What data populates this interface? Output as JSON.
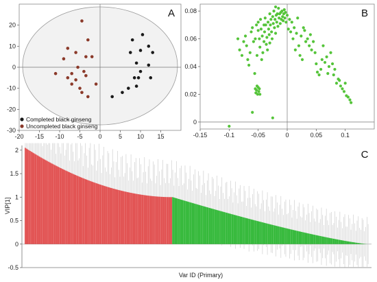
{
  "panel_labels": {
    "a": "A",
    "b": "B",
    "c": "C"
  },
  "colors": {
    "completed": "#1a1a1a",
    "uncompleted": "#8b3a2a",
    "loadings": "#55c43a",
    "vip_red": "#e04848",
    "vip_green": "#29b52f",
    "errorbar": "#c8c8c8",
    "ellipse_fill": "#f2f2f2"
  },
  "chart_data": [
    {
      "type": "scatter",
      "panel": "A",
      "xlim": [
        -20,
        20
      ],
      "ylim": [
        -30,
        30
      ],
      "x_ticks": [
        -20,
        -15,
        -10,
        -5,
        0,
        5,
        10,
        15
      ],
      "y_ticks": [
        -30,
        -20,
        -10,
        0,
        10,
        20
      ],
      "legend_position": "bottom-left",
      "series": [
        {
          "name": "Completed black ginseng",
          "color": "#1a1a1a",
          "points": [
            [
              10.5,
              15.5
            ],
            [
              8,
              13
            ],
            [
              12,
              10
            ],
            [
              13,
              7
            ],
            [
              10,
              8
            ],
            [
              7.5,
              7
            ],
            [
              9,
              2
            ],
            [
              12,
              1
            ],
            [
              10,
              -2
            ],
            [
              8.5,
              -5
            ],
            [
              9.5,
              -5
            ],
            [
              12.5,
              -5
            ],
            [
              7,
              -10
            ],
            [
              9,
              -9
            ],
            [
              5.5,
              -12
            ],
            [
              3,
              -14
            ]
          ]
        },
        {
          "name": "Uncompleted black ginseng",
          "color": "#8b3a2a",
          "points": [
            [
              -4.5,
              22
            ],
            [
              -3,
              13
            ],
            [
              -8,
              9
            ],
            [
              -6,
              7
            ],
            [
              -9,
              4
            ],
            [
              -3.5,
              5
            ],
            [
              -2,
              5
            ],
            [
              -5.5,
              0
            ],
            [
              -11,
              -3
            ],
            [
              -8,
              -5
            ],
            [
              -4,
              -2
            ],
            [
              -3.5,
              -4
            ],
            [
              -6,
              -6
            ],
            [
              -7,
              -8
            ],
            [
              -5,
              -10
            ],
            [
              -4.5,
              -12
            ],
            [
              -3,
              -14
            ],
            [
              -1,
              -8
            ],
            [
              -7,
              -3
            ]
          ]
        }
      ]
    },
    {
      "type": "scatter",
      "panel": "B",
      "xlim": [
        -0.15,
        0.15
      ],
      "ylim": [
        -0.005,
        0.085
      ],
      "x_ticks": [
        -0.15,
        -0.1,
        -0.05,
        0,
        0.05,
        0.1
      ],
      "y_ticks": [
        0,
        0.02,
        0.04,
        0.06,
        0.08
      ],
      "series": [
        {
          "color": "#55c43a",
          "points": [
            [
              -0.1,
              -0.003
            ],
            [
              -0.085,
              0.06
            ],
            [
              -0.082,
              0.052
            ],
            [
              -0.078,
              0.048
            ],
            [
              -0.075,
              0.058
            ],
            [
              -0.072,
              0.062
            ],
            [
              -0.07,
              0.055
            ],
            [
              -0.068,
              0.045
            ],
            [
              -0.066,
              0.041
            ],
            [
              -0.064,
              0.05
            ],
            [
              -0.062,
              0.065
            ],
            [
              -0.06,
              0.068
            ],
            [
              -0.058,
              0.058
            ],
            [
              -0.056,
              0.035
            ],
            [
              -0.055,
              0.06
            ],
            [
              -0.053,
              0.07
            ],
            [
              -0.052,
              0.048
            ],
            [
              -0.05,
              0.072
            ],
            [
              -0.05,
              0.066
            ],
            [
              -0.048,
              0.06
            ],
            [
              -0.047,
              0.054
            ],
            [
              -0.046,
              0.074
            ],
            [
              -0.045,
              0.067
            ],
            [
              -0.044,
              0.045
            ],
            [
              -0.043,
              0.062
            ],
            [
              -0.042,
              0.05
            ],
            [
              -0.04,
              0.07
            ],
            [
              -0.04,
              0.058
            ],
            [
              -0.039,
              0.065
            ],
            [
              -0.038,
              0.075
            ],
            [
              -0.037,
              0.07
            ],
            [
              -0.036,
              0.056
            ],
            [
              -0.035,
              0.061
            ],
            [
              -0.034,
              0.052
            ],
            [
              -0.033,
              0.072
            ],
            [
              -0.032,
              0.067
            ],
            [
              -0.031,
              0.063
            ],
            [
              -0.03,
              0.078
            ],
            [
              -0.03,
              0.057
            ],
            [
              -0.029,
              0.07
            ],
            [
              -0.028,
              0.074
            ],
            [
              -0.027,
              0.065
            ],
            [
              -0.026,
              0.06
            ],
            [
              -0.025,
              0.076
            ],
            [
              -0.024,
              0.071
            ],
            [
              -0.023,
              0.08
            ],
            [
              -0.022,
              0.068
            ],
            [
              -0.021,
              0.074
            ],
            [
              -0.02,
              0.064
            ],
            [
              -0.02,
              0.083
            ],
            [
              -0.019,
              0.077
            ],
            [
              -0.018,
              0.072
            ],
            [
              -0.017,
              0.078
            ],
            [
              -0.016,
              0.069
            ],
            [
              -0.015,
              0.082
            ],
            [
              -0.014,
              0.075
            ],
            [
              -0.013,
              0.078
            ],
            [
              -0.012,
              0.071
            ],
            [
              -0.011,
              0.079
            ],
            [
              -0.01,
              0.074
            ],
            [
              -0.009,
              0.08
            ],
            [
              -0.008,
              0.076
            ],
            [
              -0.007,
              0.073
            ],
            [
              -0.006,
              0.078
            ],
            [
              -0.005,
              0.081
            ],
            [
              -0.004,
              0.075
            ],
            [
              -0.003,
              0.079
            ],
            [
              -0.002,
              0.072
            ],
            [
              0,
              0.077
            ],
            [
              0.002,
              0.067
            ],
            [
              0.004,
              0.074
            ],
            [
              0.006,
              0.065
            ],
            [
              0.008,
              0.072
            ],
            [
              0.01,
              0.06
            ],
            [
              0.012,
              0.068
            ],
            [
              0.014,
              0.052
            ],
            [
              0.016,
              0.064
            ],
            [
              0.018,
              0.075
            ],
            [
              0.02,
              0.055
            ],
            [
              0.022,
              0.048
            ],
            [
              0.024,
              0.062
            ],
            [
              0.026,
              0.045
            ],
            [
              0.028,
              0.068
            ],
            [
              0.03,
              0.066
            ],
            [
              0.032,
              0.058
            ],
            [
              0.035,
              0.06
            ],
            [
              0.038,
              0.055
            ],
            [
              0.04,
              0.063
            ],
            [
              0.042,
              0.052
            ],
            [
              0.045,
              0.058
            ],
            [
              0.048,
              0.05
            ],
            [
              0.05,
              0.042
            ],
            [
              0.052,
              0.036
            ],
            [
              0.055,
              0.034
            ],
            [
              0.058,
              0.038
            ],
            [
              0.06,
              0.045
            ],
            [
              0.062,
              0.055
            ],
            [
              0.065,
              0.043
            ],
            [
              0.068,
              0.047
            ],
            [
              0.07,
              0.035
            ],
            [
              0.072,
              0.04
            ],
            [
              0.075,
              0.05
            ],
            [
              0.078,
              0.042
            ],
            [
              0.08,
              0.034
            ],
            [
              0.082,
              0.038
            ],
            [
              0.085,
              0.028
            ],
            [
              0.088,
              0.031
            ],
            [
              0.09,
              0.03
            ],
            [
              0.092,
              0.026
            ],
            [
              0.095,
              0.024
            ],
            [
              0.098,
              0.022
            ],
            [
              0.1,
              0.028
            ],
            [
              0.102,
              0.019
            ],
            [
              0.105,
              0.018
            ],
            [
              0.108,
              0.016
            ],
            [
              0.11,
              0.014
            ],
            [
              -0.055,
              0.024
            ],
            [
              -0.054,
              0.021
            ],
            [
              -0.053,
              0.023
            ],
            [
              -0.052,
              0.026
            ],
            [
              -0.051,
              0.02
            ],
            [
              -0.05,
              0.025
            ],
            [
              -0.049,
              0.022
            ],
            [
              -0.048,
              0.024
            ],
            [
              -0.047,
              0.02
            ],
            [
              -0.06,
              0.007
            ],
            [
              -0.025,
              0.003
            ]
          ]
        }
      ]
    },
    {
      "type": "bar",
      "panel": "C",
      "xlabel": "Var ID (Primary)",
      "ylabel": "VIP[1]",
      "ylim": [
        -0.5,
        2.1
      ],
      "y_ticks": [
        -0.5,
        0,
        0.5,
        1,
        1.5,
        2
      ],
      "bar_count": 280,
      "vip_max": 2.05,
      "vip_at_split": 1.0,
      "red_bar_count": 120,
      "series": [
        {
          "name": "VIP > 1",
          "color": "#e04848"
        },
        {
          "name": "VIP < 1",
          "color": "#29b52f"
        }
      ]
    }
  ]
}
